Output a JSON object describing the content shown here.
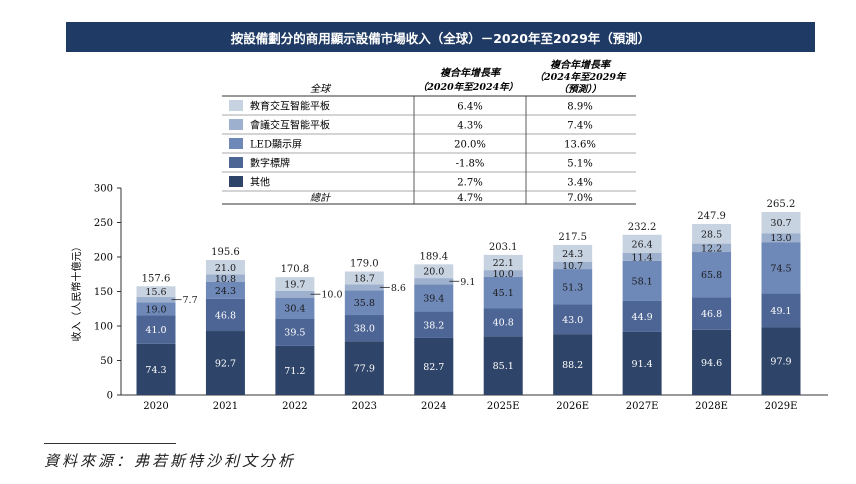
{
  "title": "按設備劃分的商用顯示設備市場收入（全球）－2020年至2029年（預測）",
  "source": "資料來源：弗若斯特沙利文分析",
  "table": {
    "header_region": "全球",
    "header_cagr1_line1": "複合年增長率",
    "header_cagr1_line2": "（2020年至2024年）",
    "header_cagr2_line1": "複合年增長率",
    "header_cagr2_line2": "（2024年至2029年",
    "header_cagr2_line3": "（預測））",
    "rows": [
      {
        "label": "教育交互智能平板",
        "cagr1": "6.4%",
        "cagr2": "8.9%",
        "color": "#c8d3e2"
      },
      {
        "label": "會議交互智能平板",
        "cagr1": "4.3%",
        "cagr2": "7.4%",
        "color": "#9db0cd"
      },
      {
        "label": "LED顯示屏",
        "cagr1": "20.0%",
        "cagr2": "13.6%",
        "color": "#6e88b8"
      },
      {
        "label": "數字標牌",
        "cagr1": "-1.8%",
        "cagr2": "5.1%",
        "color": "#4d6595"
      },
      {
        "label": "其他",
        "cagr1": "2.7%",
        "cagr2": "3.4%",
        "color": "#2e4468"
      }
    ],
    "total_label": "總計",
    "total_cagr1": "4.7%",
    "total_cagr2": "7.0%"
  },
  "chart_data": {
    "type": "bar",
    "stacked": true,
    "categories": [
      "2020",
      "2021",
      "2022",
      "2023",
      "2024",
      "2025E",
      "2026E",
      "2027E",
      "2028E",
      "2029E"
    ],
    "ylabel": "收入（人民幣十億元）",
    "ylim": [
      0,
      300
    ],
    "yticks": [
      0,
      50,
      100,
      150,
      200,
      250,
      300
    ],
    "series": [
      {
        "name": "其他",
        "color": "#2e4468",
        "values": [
          74.3,
          92.7,
          71.2,
          77.9,
          82.7,
          85.1,
          88.2,
          91.4,
          94.6,
          97.9
        ]
      },
      {
        "name": "數字標牌",
        "color": "#4d6595",
        "values": [
          41.0,
          46.8,
          39.5,
          38.0,
          38.2,
          40.8,
          43.0,
          44.9,
          46.8,
          49.1
        ]
      },
      {
        "name": "LED顯示屏",
        "color": "#6e88b8",
        "values": [
          19.0,
          24.3,
          30.4,
          35.8,
          39.4,
          45.1,
          51.3,
          58.1,
          65.8,
          74.5
        ]
      },
      {
        "name": "會議交互智能平板",
        "color": "#9db0cd",
        "values": [
          7.7,
          10.8,
          10.0,
          8.6,
          9.1,
          10.0,
          10.7,
          11.4,
          12.2,
          13.0
        ]
      },
      {
        "name": "教育交互智能平板",
        "color": "#c8d3e2",
        "values": [
          15.6,
          21.0,
          19.7,
          18.7,
          20.0,
          22.1,
          24.3,
          26.4,
          28.5,
          30.7
        ]
      }
    ],
    "totals": [
      157.6,
      195.6,
      170.8,
      179.0,
      189.4,
      203.1,
      217.5,
      232.2,
      247.9,
      265.2
    ],
    "outside_labels": [
      true,
      false,
      true,
      true,
      true,
      false,
      false,
      false,
      false,
      false
    ]
  }
}
